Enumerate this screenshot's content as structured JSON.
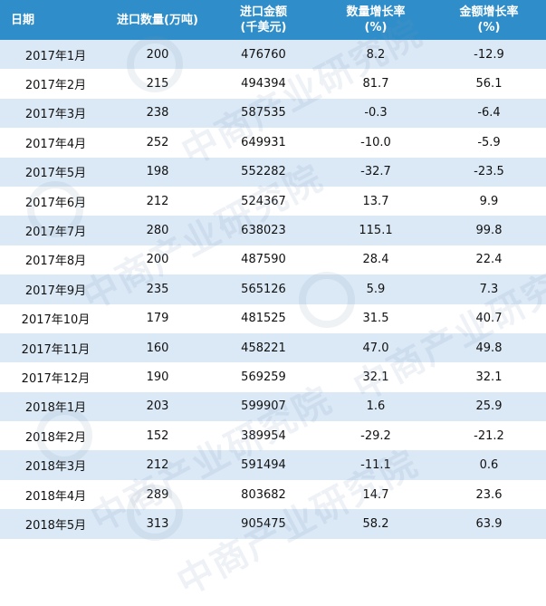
{
  "headers": {
    "date": "日期",
    "qty": "进口数量(万吨)",
    "amount_l1": "进口金额",
    "amount_l2": "(千美元)",
    "qty_growth_l1": "数量增长率",
    "qty_growth_l2": "(%)",
    "amt_growth_l1": "金额增长率",
    "amt_growth_l2": "(%)"
  },
  "rows": [
    {
      "date": "2017年1月",
      "qty": "200",
      "amount": "476760",
      "qty_growth": "8.2",
      "amt_growth": "-12.9"
    },
    {
      "date": "2017年2月",
      "qty": "215",
      "amount": "494394",
      "qty_growth": "81.7",
      "amt_growth": "56.1"
    },
    {
      "date": "2017年3月",
      "qty": "238",
      "amount": "587535",
      "qty_growth": "-0.3",
      "amt_growth": "-6.4"
    },
    {
      "date": "2017年4月",
      "qty": "252",
      "amount": "649931",
      "qty_growth": "-10.0",
      "amt_growth": "-5.9"
    },
    {
      "date": "2017年5月",
      "qty": "198",
      "amount": "552282",
      "qty_growth": "-32.7",
      "amt_growth": "-23.5"
    },
    {
      "date": "2017年6月",
      "qty": "212",
      "amount": "524367",
      "qty_growth": "13.7",
      "amt_growth": "9.9"
    },
    {
      "date": "2017年7月",
      "qty": "280",
      "amount": "638023",
      "qty_growth": "115.1",
      "amt_growth": "99.8"
    },
    {
      "date": "2017年8月",
      "qty": "200",
      "amount": "487590",
      "qty_growth": "28.4",
      "amt_growth": "22.4"
    },
    {
      "date": "2017年9月",
      "qty": "235",
      "amount": "565126",
      "qty_growth": "5.9",
      "amt_growth": "7.3"
    },
    {
      "date": "2017年10月",
      "qty": "179",
      "amount": "481525",
      "qty_growth": "31.5",
      "amt_growth": "40.7"
    },
    {
      "date": "2017年11月",
      "qty": "160",
      "amount": "458221",
      "qty_growth": "47.0",
      "amt_growth": "49.8"
    },
    {
      "date": "2017年12月",
      "qty": "190",
      "amount": "569259",
      "qty_growth": "32.1",
      "amt_growth": "32.1"
    },
    {
      "date": "2018年1月",
      "qty": "203",
      "amount": "599907",
      "qty_growth": "1.6",
      "amt_growth": "25.9"
    },
    {
      "date": "2018年2月",
      "qty": "152",
      "amount": "389954",
      "qty_growth": "-29.2",
      "amt_growth": "-21.2"
    },
    {
      "date": "2018年3月",
      "qty": "212",
      "amount": "591494",
      "qty_growth": "-11.1",
      "amt_growth": "0.6"
    },
    {
      "date": "2018年4月",
      "qty": "289",
      "amount": "803682",
      "qty_growth": "14.7",
      "amt_growth": "23.6"
    },
    {
      "date": "2018年5月",
      "qty": "313",
      "amount": "905475",
      "qty_growth": "58.2",
      "amt_growth": "63.9"
    }
  ],
  "watermark": "中商产业研究院",
  "colors": {
    "header_bg": "#2f8ec9",
    "stripe": "#dbe9f6"
  }
}
